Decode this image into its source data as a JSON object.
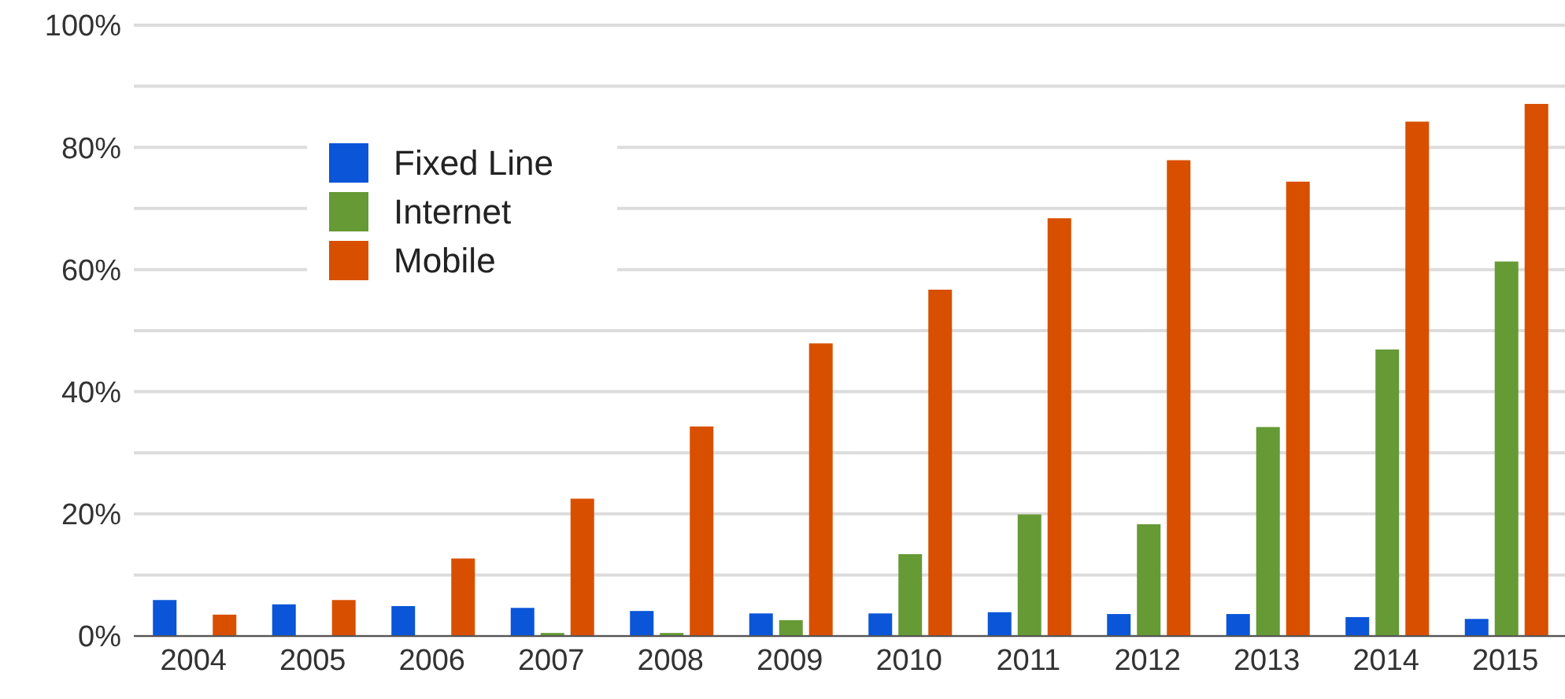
{
  "chart_data": {
    "type": "bar",
    "categories": [
      "2004",
      "2005",
      "2006",
      "2007",
      "2008",
      "2009",
      "2010",
      "2011",
      "2012",
      "2013",
      "2014",
      "2015"
    ],
    "series": [
      {
        "name": "Fixed Line",
        "color": "#0a55d8",
        "values": [
          5.9,
          5.2,
          4.9,
          4.6,
          4.1,
          3.7,
          3.7,
          3.9,
          3.6,
          3.6,
          3.1,
          2.8
        ]
      },
      {
        "name": "Internet",
        "color": "#659a35",
        "values": [
          0,
          0,
          0,
          0.5,
          0.5,
          2.6,
          13.4,
          19.9,
          18.3,
          34.2,
          46.9,
          61.3
        ]
      },
      {
        "name": "Mobile",
        "color": "#d94f00",
        "values": [
          3.5,
          5.9,
          12.7,
          22.5,
          34.3,
          47.9,
          56.7,
          68.4,
          77.9,
          74.4,
          84.2,
          87.1
        ]
      }
    ],
    "ylim": [
      0,
      100
    ],
    "yticks": [
      {
        "value": 0,
        "label": "0%"
      },
      {
        "value": 10,
        "label": null
      },
      {
        "value": 20,
        "label": "20%"
      },
      {
        "value": 30,
        "label": null
      },
      {
        "value": 40,
        "label": "40%"
      },
      {
        "value": 50,
        "label": null
      },
      {
        "value": 60,
        "label": "60%"
      },
      {
        "value": 70,
        "label": null
      },
      {
        "value": 80,
        "label": "80%"
      },
      {
        "value": 90,
        "label": null
      },
      {
        "value": 100,
        "label": "100%"
      }
    ],
    "grid": "y",
    "legend": "top left"
  }
}
